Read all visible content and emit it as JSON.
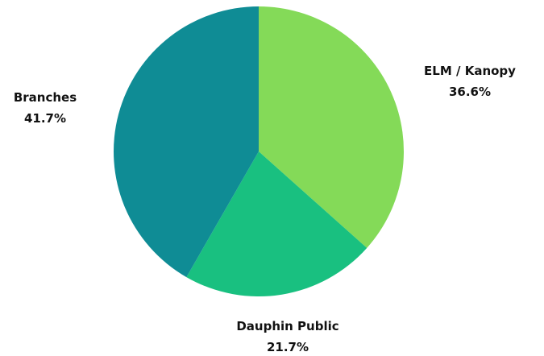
{
  "chart_data": {
    "type": "pie",
    "title": "",
    "slices": [
      {
        "name": "ELM / Kanopy",
        "value": 36.6,
        "label": "36.6%",
        "color": "#84DA58"
      },
      {
        "name": "Dauphin Public",
        "value": 21.7,
        "label": "21.7%",
        "color": "#19C080"
      },
      {
        "name": "Branches",
        "value": 41.7,
        "label": "41.7%",
        "color": "#0F8C95"
      }
    ]
  }
}
